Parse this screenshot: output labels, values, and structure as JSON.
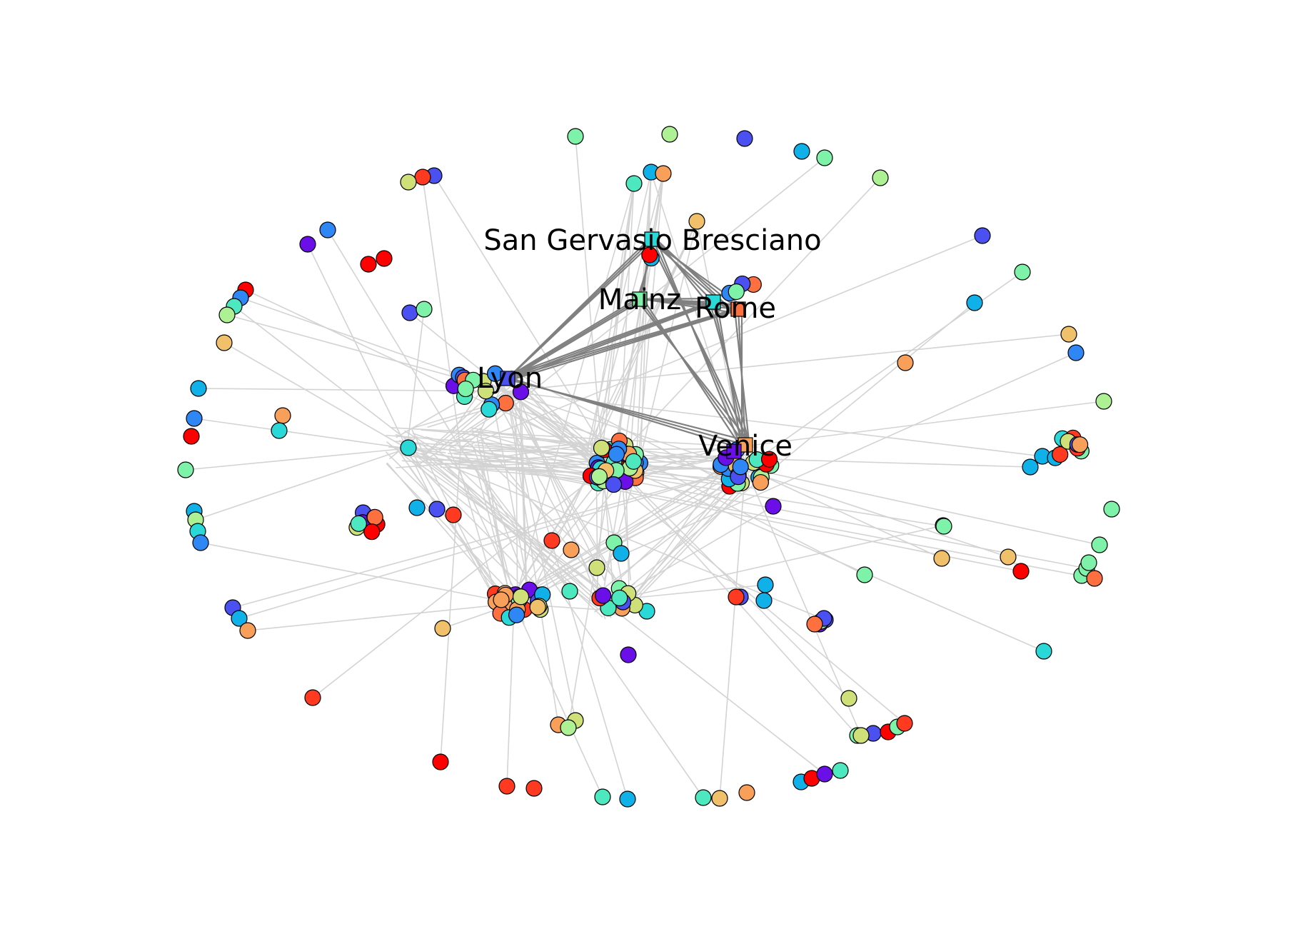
{
  "diagram": {
    "type": "network-graph",
    "labels": {
      "san_gervasio": "San Gervasio Bresciano",
      "mainz": "Mainz",
      "rome": "Rome",
      "lyon": "Lyon",
      "venice": "Venice"
    },
    "colors": {
      "background": "#ffffff",
      "light_edge": "#d3d3d3",
      "dark_edge": "#808080",
      "palette": [
        "#6a0fe8",
        "#4b50f0",
        "#2f86f5",
        "#10b0e8",
        "#2ad8d8",
        "#4ee8c0",
        "#7df2a8",
        "#aef094",
        "#d0e078",
        "#f0c06a",
        "#f8a05a",
        "#ff7040",
        "#ff3a20",
        "#ff0000"
      ]
    }
  }
}
